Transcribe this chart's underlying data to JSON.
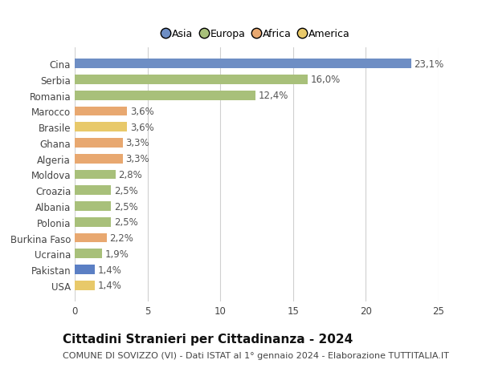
{
  "categories": [
    "USA",
    "Pakistan",
    "Ucraina",
    "Burkina Faso",
    "Polonia",
    "Albania",
    "Croazia",
    "Moldova",
    "Algeria",
    "Ghana",
    "Brasile",
    "Marocco",
    "Romania",
    "Serbia",
    "Cina"
  ],
  "values": [
    1.4,
    1.4,
    1.9,
    2.2,
    2.5,
    2.5,
    2.5,
    2.8,
    3.3,
    3.3,
    3.6,
    3.6,
    12.4,
    16.0,
    23.1
  ],
  "labels": [
    "1,4%",
    "1,4%",
    "1,9%",
    "2,2%",
    "2,5%",
    "2,5%",
    "2,5%",
    "2,8%",
    "3,3%",
    "3,3%",
    "3,6%",
    "3,6%",
    "12,4%",
    "16,0%",
    "23,1%"
  ],
  "colors": [
    "#e8c96a",
    "#5b7fc4",
    "#a8c07a",
    "#e8a870",
    "#a8c07a",
    "#a8c07a",
    "#a8c07a",
    "#a8c07a",
    "#e8a870",
    "#e8a870",
    "#e8c96a",
    "#e8a870",
    "#a8c07a",
    "#a8c07a",
    "#6e8ec4"
  ],
  "legend_labels": [
    "Asia",
    "Europa",
    "Africa",
    "America"
  ],
  "legend_colors": [
    "#6e8ec4",
    "#a8c07a",
    "#e8a870",
    "#e8c96a"
  ],
  "title": "Cittadini Stranieri per Cittadinanza - 2024",
  "subtitle": "COMUNE DI SOVIZZO (VI) - Dati ISTAT al 1° gennaio 2024 - Elaborazione TUTTITALIA.IT",
  "xlim": [
    0,
    25
  ],
  "xticks": [
    0,
    5,
    10,
    15,
    20,
    25
  ],
  "background_color": "#ffffff",
  "grid_color": "#d0d0d0",
  "bar_height": 0.6,
  "label_fontsize": 8.5,
  "tick_fontsize": 8.5,
  "title_fontsize": 11,
  "subtitle_fontsize": 8
}
